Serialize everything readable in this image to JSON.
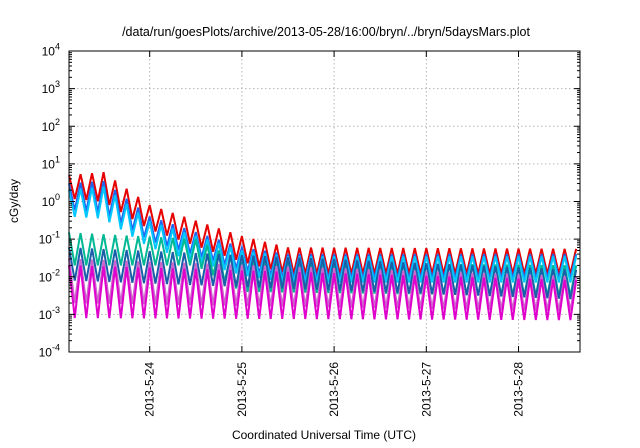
{
  "chart_data": {
    "type": "line",
    "title": "/data/run/goesPlots/archive/2013-05-28/16:00/bryn/../bryn/5daysMars.plot",
    "xlabel": "Coordinated Universal Time (UTC)",
    "ylabel": "cGy/day",
    "x_scale": "time",
    "y_scale": "log",
    "grid": true,
    "legend": "none",
    "xlim": [
      "2013-05-23 03:00",
      "2013-05-28 16:00"
    ],
    "ylim": [
      0.0001,
      10000
    ],
    "xticks": [
      "2013-5-24",
      "2013-5-25",
      "2013-5-26",
      "2013-5-27",
      "2013-5-28"
    ],
    "yticks": [
      {
        "base": "10",
        "exp": "-4",
        "value": 0.0001
      },
      {
        "base": "10",
        "exp": "-3",
        "value": 0.001
      },
      {
        "base": "10",
        "exp": "-2",
        "value": 0.01
      },
      {
        "base": "10",
        "exp": "-1",
        "value": 0.1
      },
      {
        "base": "10",
        "exp": "0",
        "value": 1
      },
      {
        "base": "10",
        "exp": "1",
        "value": 10
      },
      {
        "base": "10",
        "exp": "2",
        "value": 100
      },
      {
        "base": "10",
        "exp": "3",
        "value": 1000
      },
      {
        "base": "10",
        "exp": "4",
        "value": 10000
      }
    ],
    "sawtooth_period_hours": 3,
    "series": [
      {
        "color": "#e60000",
        "peaks": [
          [
            "2013-05-23 03:00",
            5
          ],
          [
            "2013-05-23 12:00",
            6
          ],
          [
            "2013-05-24 00:00",
            0.8
          ],
          [
            "2013-05-25 00:00",
            0.12
          ],
          [
            "2013-05-25 12:00",
            0.06
          ],
          [
            "2013-05-28 16:00",
            0.055
          ]
        ],
        "troughs": [
          [
            "2013-05-23 03:00",
            1.2
          ],
          [
            "2013-05-23 12:00",
            1.0
          ],
          [
            "2013-05-24 00:00",
            0.18
          ],
          [
            "2013-05-25 00:00",
            0.025
          ],
          [
            "2013-05-25 12:00",
            0.012
          ],
          [
            "2013-05-28 16:00",
            0.012
          ]
        ]
      },
      {
        "color": "#2266ee",
        "peaks": [
          [
            "2013-05-23 03:00",
            3
          ],
          [
            "2013-05-23 12:00",
            3.5
          ],
          [
            "2013-05-24 00:00",
            0.4
          ],
          [
            "2013-05-25 00:00",
            0.06
          ],
          [
            "2013-05-25 12:00",
            0.04
          ],
          [
            "2013-05-28 16:00",
            0.04
          ]
        ],
        "troughs": [
          [
            "2013-05-23 03:00",
            0.6
          ],
          [
            "2013-05-23 12:00",
            0.5
          ],
          [
            "2013-05-24 00:00",
            0.09
          ],
          [
            "2013-05-25 00:00",
            0.015
          ],
          [
            "2013-05-25 12:00",
            0.009
          ],
          [
            "2013-05-28 16:00",
            0.009
          ]
        ]
      },
      {
        "color": "#00c8ff",
        "peaks": [
          [
            "2013-05-23 03:00",
            2
          ],
          [
            "2013-05-23 12:00",
            2.5
          ],
          [
            "2013-05-24 00:00",
            0.3
          ],
          [
            "2013-05-25 00:00",
            0.05
          ],
          [
            "2013-05-25 12:00",
            0.035
          ],
          [
            "2013-05-28 16:00",
            0.035
          ]
        ],
        "troughs": [
          [
            "2013-05-23 03:00",
            0.4
          ],
          [
            "2013-05-23 12:00",
            0.35
          ],
          [
            "2013-05-24 00:00",
            0.06
          ],
          [
            "2013-05-25 00:00",
            0.011
          ],
          [
            "2013-05-25 12:00",
            0.007
          ],
          [
            "2013-05-28 16:00",
            0.007
          ]
        ]
      },
      {
        "color": "#00b894",
        "peaks": [
          [
            "2013-05-23 03:00",
            0.15
          ],
          [
            "2013-05-24 12:00",
            0.1
          ],
          [
            "2013-05-25 00:00",
            0.025
          ],
          [
            "2013-05-28 16:00",
            0.02
          ]
        ],
        "troughs": [
          [
            "2013-05-23 03:00",
            0.02
          ],
          [
            "2013-05-24 12:00",
            0.02
          ],
          [
            "2013-05-25 00:00",
            0.004
          ],
          [
            "2013-05-28 16:00",
            0.003
          ]
        ]
      },
      {
        "color": "#1a5eaa",
        "peaks": [
          [
            "2013-05-23 03:00",
            0.06
          ],
          [
            "2013-05-28 16:00",
            0.015
          ]
        ],
        "troughs": [
          [
            "2013-05-23 03:00",
            0.008
          ],
          [
            "2013-05-28 16:00",
            0.0025
          ]
        ]
      },
      {
        "color": "#cc66cc",
        "peaks": [
          [
            "2013-05-23 03:00",
            0.03
          ],
          [
            "2013-05-28 16:00",
            0.01
          ]
        ],
        "troughs": [
          [
            "2013-05-23 03:00",
            0.002
          ],
          [
            "2013-05-28 16:00",
            0.0012
          ]
        ]
      },
      {
        "color": "#e000cc",
        "peaks": [
          [
            "2013-05-23 03:00",
            0.02
          ],
          [
            "2013-05-28 16:00",
            0.008
          ]
        ],
        "troughs": [
          [
            "2013-05-23 03:00",
            0.0008
          ],
          [
            "2013-05-28 16:00",
            0.0007
          ]
        ]
      }
    ]
  }
}
